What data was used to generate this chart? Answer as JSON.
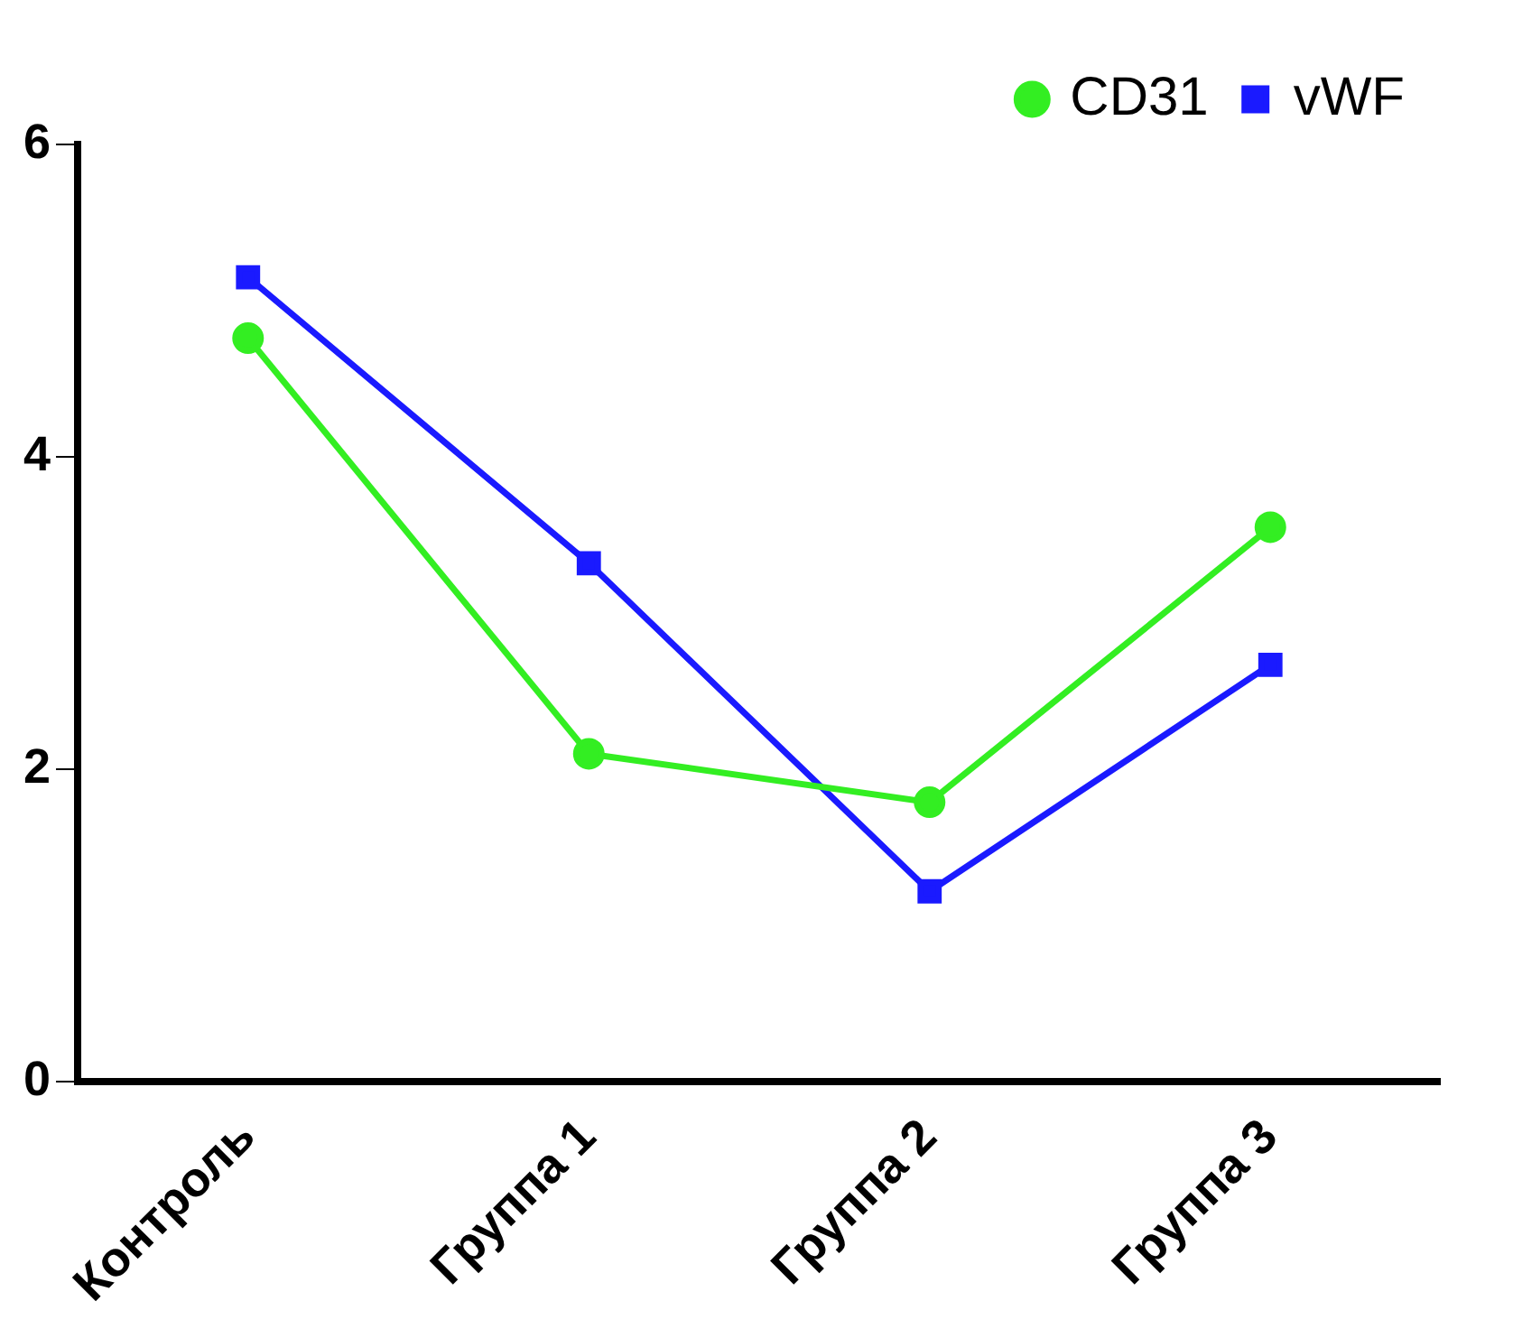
{
  "chart_data": {
    "type": "line",
    "categories": [
      "Контроль",
      "Группа 1",
      "Группа 2",
      "Группа 3"
    ],
    "series": [
      {
        "name": "CD31",
        "color": "#33ee22",
        "marker": "circle",
        "values": [
          4.76,
          2.1,
          1.79,
          3.55
        ]
      },
      {
        "name": "vWF",
        "color": "#1a1aff",
        "marker": "square",
        "values": [
          5.15,
          3.32,
          1.22,
          2.67
        ]
      }
    ],
    "ylim": [
      0,
      6
    ],
    "yticks": [
      0,
      2,
      4,
      6
    ],
    "grid": false,
    "legend": "top right",
    "line_style": "solid"
  }
}
